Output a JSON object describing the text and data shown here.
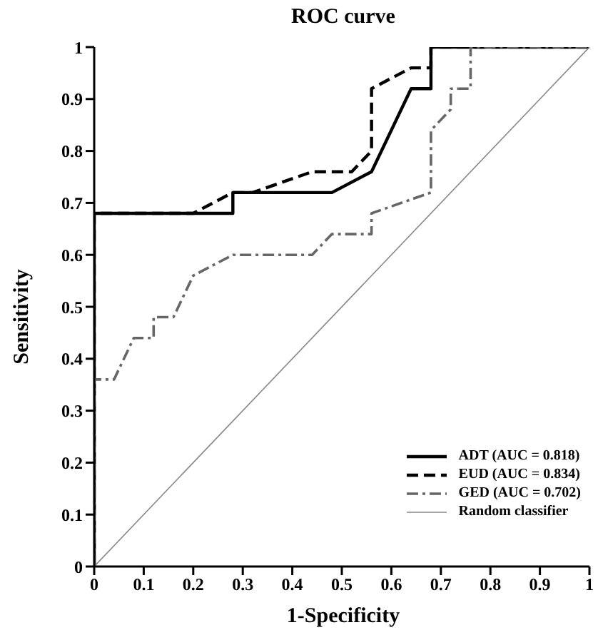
{
  "chart_data": {
    "type": "line",
    "title": "ROC curve",
    "xlabel": "1-Specificity",
    "ylabel": "Sensitivity",
    "xlim": [
      0,
      1
    ],
    "ylim": [
      0,
      1
    ],
    "xticks": [
      0,
      0.1,
      0.2,
      0.3,
      0.4,
      0.5,
      0.6,
      0.7,
      0.8,
      0.9,
      1
    ],
    "yticks": [
      0,
      0.1,
      0.2,
      0.3,
      0.4,
      0.5,
      0.6,
      0.7,
      0.8,
      0.9,
      1
    ],
    "legend": "bottom right",
    "marker": "none",
    "series": [
      {
        "name": "ADT (AUC = 0.818)",
        "color": "#000000",
        "line_style": "solid",
        "x": [
          0,
          0,
          0.28,
          0.28,
          0.48,
          0.56,
          0.64,
          0.68,
          0.68,
          1
        ],
        "values": [
          0,
          0.68,
          0.68,
          0.72,
          0.72,
          0.76,
          0.92,
          0.92,
          1,
          1
        ]
      },
      {
        "name": "EUD (AUC = 0.834)",
        "color": "#000000",
        "line_style": "dashed",
        "x": [
          0,
          0,
          0.2,
          0.28,
          0.32,
          0.44,
          0.52,
          0.56,
          0.56,
          0.64,
          0.68,
          0.68,
          1
        ],
        "values": [
          0,
          0.68,
          0.68,
          0.72,
          0.72,
          0.76,
          0.76,
          0.8,
          0.92,
          0.96,
          0.96,
          1,
          1
        ]
      },
      {
        "name": "GED (AUC = 0.702)",
        "color": "#666666",
        "line_style": "dashdot",
        "x": [
          0,
          0,
          0.04,
          0.08,
          0.12,
          0.12,
          0.16,
          0.2,
          0.28,
          0.44,
          0.48,
          0.56,
          0.56,
          0.68,
          0.68,
          0.72,
          0.72,
          0.76,
          0.76,
          1
        ],
        "values": [
          0,
          0.36,
          0.36,
          0.44,
          0.44,
          0.48,
          0.48,
          0.56,
          0.6,
          0.6,
          0.64,
          0.64,
          0.68,
          0.72,
          0.84,
          0.88,
          0.92,
          0.92,
          1,
          1
        ]
      },
      {
        "name": "Random classifier",
        "color": "#888888",
        "line_style": "solid",
        "x": [
          0,
          1
        ],
        "values": [
          0,
          1
        ]
      }
    ]
  }
}
